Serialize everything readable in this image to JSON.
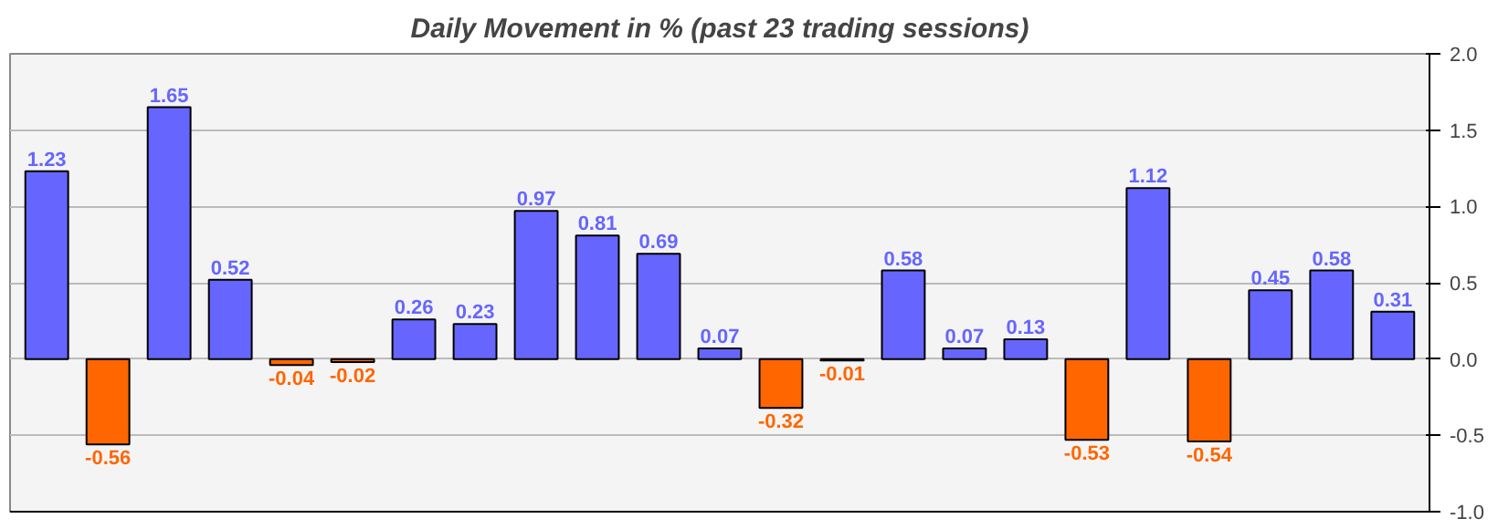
{
  "chart_data": {
    "type": "bar",
    "title": "Daily Movement in % (past 23 trading sessions)",
    "categories": [
      null,
      null,
      null,
      null,
      null,
      null,
      null,
      null,
      null,
      null,
      null,
      null,
      null,
      null,
      null,
      null,
      null,
      null,
      null,
      null,
      null,
      null,
      null
    ],
    "values": [
      1.23,
      -0.56,
      1.65,
      0.52,
      -0.04,
      -0.02,
      0.26,
      0.23,
      0.97,
      0.81,
      0.69,
      0.07,
      -0.32,
      -0.01,
      0.58,
      0.07,
      0.13,
      -0.53,
      1.12,
      -0.54,
      0.45,
      0.58,
      0.31
    ],
    "colors": [
      "#6666ff",
      "#ff6600",
      "#6666ff",
      "#6666ff",
      "#ff6600",
      "#ff6600",
      "#6666ff",
      "#6666ff",
      "#6666ff",
      "#6666ff",
      "#6666ff",
      "#6666ff",
      "#ff6600",
      "#ff6600",
      "#6666ff",
      "#6666ff",
      "#6666ff",
      "#ff6600",
      "#6666ff",
      "#ff6600",
      "#6666ff",
      "#6666ff",
      "#6666ff"
    ],
    "ylim": [
      -1,
      2
    ],
    "yticks": [
      {
        "value": -1,
        "label": "-1.0"
      },
      {
        "value": -0.5,
        "label": "-0.5"
      },
      {
        "value": 0,
        "label": "0.0"
      },
      {
        "value": 0.5,
        "label": "0.5"
      },
      {
        "value": 1,
        "label": "1.0"
      },
      {
        "value": 1.5,
        "label": "1.5"
      },
      {
        "value": 2,
        "label": "2.0"
      }
    ],
    "grid": "y",
    "data_labels": true
  }
}
